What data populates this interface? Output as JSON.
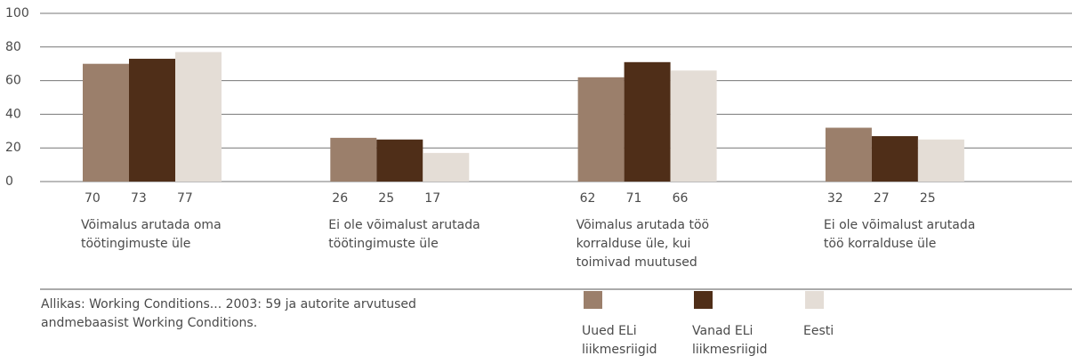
{
  "chart_data": {
    "type": "bar",
    "categories": [
      "Võimalus arutada oma\ntöötingimuste üle",
      "Ei ole võimalust arutada\ntöötingimuste üle",
      "Võimalus arutada töö\nkorralduse üle, kui\ntoimivad muutused",
      "Ei ole võimalust arutada\ntöö korralduse üle"
    ],
    "series": [
      {
        "name": "Uued ELi\nliikmesriigid",
        "color": "#9b7f6b",
        "values": [
          70,
          26,
          62,
          32
        ]
      },
      {
        "name": "Vanad ELi\nliikmesriigid",
        "color": "#4f2e18",
        "values": [
          73,
          25,
          71,
          27
        ]
      },
      {
        "name": "Eesti",
        "color": "#e4ddd6",
        "values": [
          77,
          17,
          66,
          25
        ]
      }
    ],
    "ylim": [
      0,
      100
    ],
    "yticks": [
      0,
      20,
      40,
      60,
      80,
      100
    ],
    "grid": true,
    "source": "Allikas: Working Conditions... 2003: 59 ja autorite arvutused\nandmebaasist Working Conditions."
  }
}
